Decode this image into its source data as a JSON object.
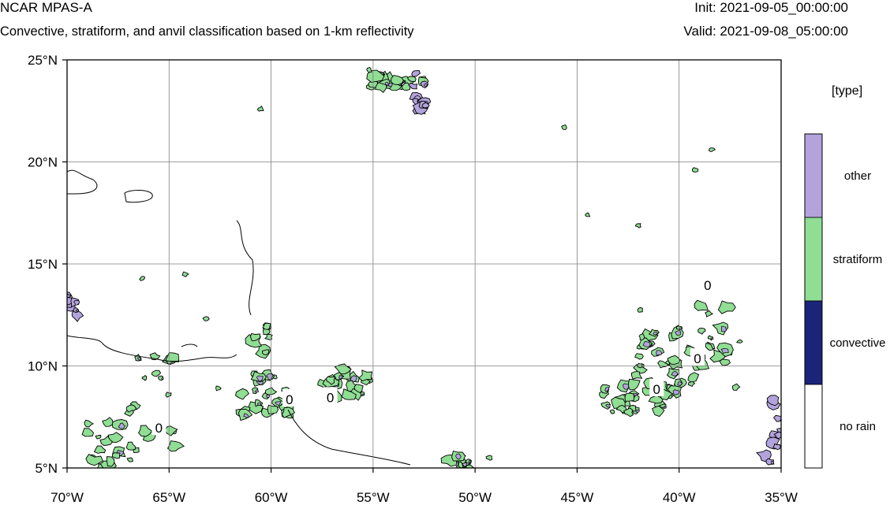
{
  "header": {
    "title": "NCAR MPAS-A",
    "subtitle": "Convective, stratiform, and anvil classification based on 1-km reflectivity",
    "init": "Init: 2021-09-05_00:00:00",
    "valid": "Valid: 2021-09-08_05:00:00"
  },
  "map": {
    "lon_range": [
      -70,
      -35
    ],
    "lat_range": [
      5,
      25
    ],
    "lon_ticks": [
      {
        "value": -70,
        "label": "70°W"
      },
      {
        "value": -65,
        "label": "65°W"
      },
      {
        "value": -60,
        "label": "60°W"
      },
      {
        "value": -55,
        "label": "55°W"
      },
      {
        "value": -50,
        "label": "50°W"
      },
      {
        "value": -45,
        "label": "45°W"
      },
      {
        "value": -40,
        "label": "40°W"
      },
      {
        "value": -35,
        "label": "35°W"
      }
    ],
    "lat_ticks": [
      {
        "value": 5,
        "label": "5°N"
      },
      {
        "value": 10,
        "label": "10°N"
      },
      {
        "value": 15,
        "label": "15°N"
      },
      {
        "value": 20,
        "label": "20°N"
      },
      {
        "value": 25,
        "label": "25°N"
      }
    ],
    "grid_lines": true
  },
  "legend": {
    "title": "[type]",
    "items": [
      {
        "label": "other",
        "color": "#b3a3dc"
      },
      {
        "label": "stratiform",
        "color": "#90dd94"
      },
      {
        "label": "convective",
        "color": "#1a2478"
      },
      {
        "label": "no rain",
        "color": "#ffffff"
      }
    ]
  },
  "contour_labels": [
    "0",
    "0",
    "0",
    "0",
    "0"
  ],
  "colors": {
    "other": "#b3a3dc",
    "stratiform": "#90dd94",
    "convective": "#1a2478",
    "no_rain": "#ffffff",
    "contour": "#000000",
    "grid": "#808080"
  },
  "rain_regions": [
    {
      "name": "north-central-cluster",
      "lon": -53.8,
      "lat": 24.0,
      "type": "stratiform"
    },
    {
      "name": "north-central-streak",
      "lon": -52.7,
      "lat": 23.4,
      "type": "other"
    },
    {
      "name": "west-edge-cluster",
      "lon": -69.7,
      "lat": 13.0,
      "type": "other"
    },
    {
      "name": "cluster-60w-12n",
      "lon": -60.4,
      "lat": 11.3,
      "type": "stratiform"
    },
    {
      "name": "cluster-65w-7n",
      "lon": -65.8,
      "lat": 7.8,
      "type": "stratiform"
    },
    {
      "name": "cluster-68w-6n",
      "lon": -68.2,
      "lat": 6.1,
      "type": "stratiform"
    },
    {
      "name": "cluster-60w-8n",
      "lon": -60.3,
      "lat": 8.6,
      "type": "stratiform"
    },
    {
      "name": "cluster-56w-9n",
      "lon": -56.3,
      "lat": 9.2,
      "type": "stratiform"
    },
    {
      "name": "cluster-50w-5n",
      "lon": -50.8,
      "lat": 5.3,
      "type": "stratiform"
    },
    {
      "name": "east-band",
      "lon": -39.5,
      "lat": 11.0,
      "type": "stratiform"
    },
    {
      "name": "east-band-lower",
      "lon": -41.8,
      "lat": 8.4,
      "type": "stratiform"
    },
    {
      "name": "east-edge-cluster",
      "lon": -35.3,
      "lat": 6.8,
      "type": "other"
    }
  ]
}
